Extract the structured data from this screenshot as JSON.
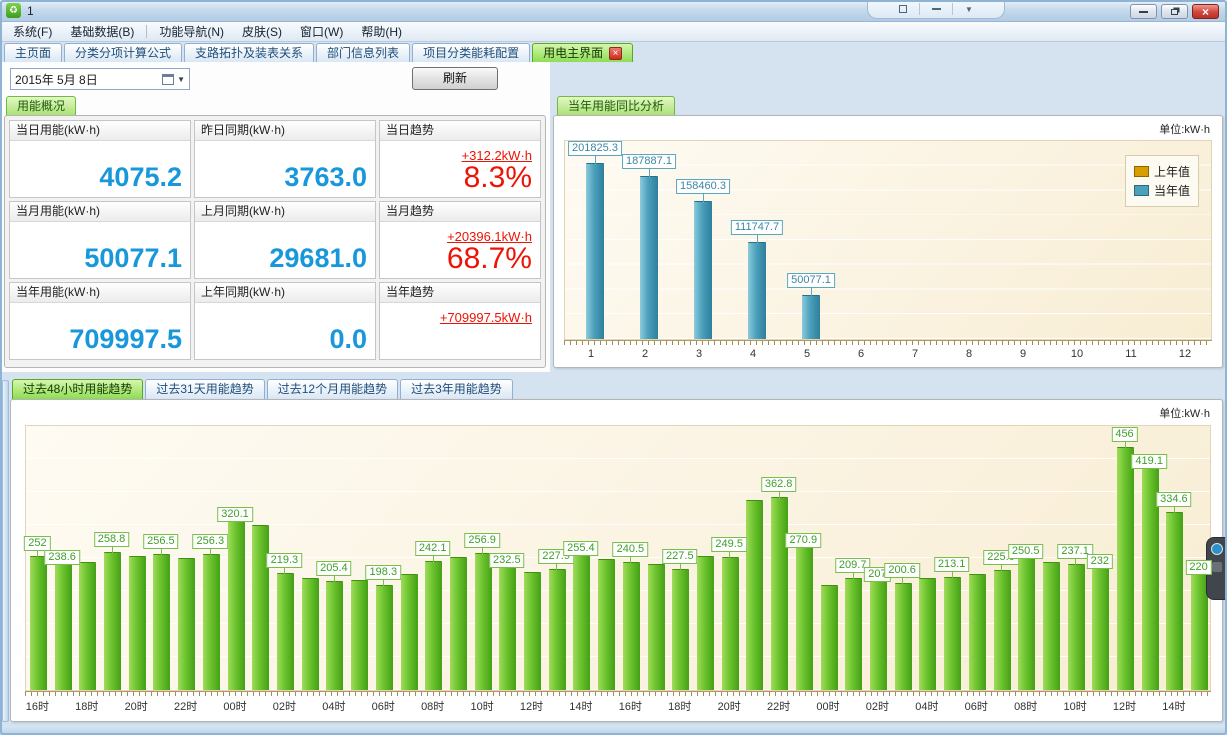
{
  "window": {
    "title": "1",
    "notch_icons": [
      "expand-icon",
      "minimize-icon",
      "chevron-down-icon"
    ],
    "window_buttons": [
      "minimize",
      "restore",
      "close"
    ]
  },
  "menu": {
    "items": [
      "系统(F)",
      "基础数据(B)",
      "功能导航(N)",
      "皮肤(S)",
      "窗口(W)",
      "帮助(H)"
    ],
    "divider_after_index": 1
  },
  "doc_tabs": [
    {
      "label": "主页面",
      "active": false
    },
    {
      "label": "分类分项计算公式",
      "active": false
    },
    {
      "label": "支路拓扑及装表关系",
      "active": false
    },
    {
      "label": "部门信息列表",
      "active": false
    },
    {
      "label": "项目分类能耗配置",
      "active": false
    },
    {
      "label": "用电主界面",
      "active": true,
      "closable": true
    }
  ],
  "toolbar": {
    "date_value": "2015年  5月  8日",
    "refresh_label": "刷新"
  },
  "overview": {
    "panel_title": "用能概况",
    "cards": [
      {
        "title": "当日用能(kW·h)",
        "value": "4075.2"
      },
      {
        "title": "昨日同期(kW·h)",
        "value": "3763.0"
      },
      {
        "title": "当日趋势",
        "delta": "+312.2kW·h",
        "percent": "8.3%"
      },
      {
        "title": "当月用能(kW·h)",
        "value": "50077.1"
      },
      {
        "title": "上月同期(kW·h)",
        "value": "29681.0"
      },
      {
        "title": "当月趋势",
        "delta": "+20396.1kW·h",
        "percent": "68.7%"
      },
      {
        "title": "当年用能(kW·h)",
        "value": "709997.5"
      },
      {
        "title": "上年同期(kW·h)",
        "value": "0.0"
      },
      {
        "title": "当年趋势",
        "delta": "+709997.5kW·h",
        "percent": ""
      }
    ]
  },
  "trend_tabs": [
    {
      "label": "过去48小时用能趋势",
      "active": true
    },
    {
      "label": "过去31天用能趋势",
      "active": false
    },
    {
      "label": "过去12个月用能趋势",
      "active": false
    },
    {
      "label": "过去3年用能趋势",
      "active": false
    }
  ],
  "colors": {
    "value_blue": "#1897db",
    "alert_red": "#ed1305",
    "bar_green": "#5bb622",
    "bar_teal": "#4ba0bc",
    "legend_gold": "#d89e00"
  },
  "chart_data": [
    {
      "type": "bar",
      "title": "当年用能同比分析",
      "unit": "单位:kW·h",
      "categories": [
        "1",
        "2",
        "3",
        "4",
        "5",
        "6",
        "7",
        "8",
        "9",
        "10",
        "11",
        "12"
      ],
      "series": [
        {
          "name": "上年值",
          "color": "#d89e00",
          "values": [
            0,
            0,
            0,
            0,
            0,
            0,
            0,
            0,
            0,
            0,
            0,
            0
          ]
        },
        {
          "name": "当年值",
          "color": "#4ba0bc",
          "values": [
            201825.3,
            187887.1,
            158460.3,
            111747.7,
            50077.1,
            0,
            0,
            0,
            0,
            0,
            0,
            0
          ]
        }
      ],
      "value_labels": [
        "201825.3",
        "187887.1",
        "158460.3",
        "111747.7",
        "50077.1",
        "",
        "",
        "",
        "",
        "",
        "",
        ""
      ],
      "ylim": [
        0,
        230000
      ],
      "legend_position": "top-right",
      "grid": true
    },
    {
      "type": "bar",
      "title": "过去48小时用能趋势",
      "unit": "单位:kW·h",
      "ylim": [
        0,
        500
      ],
      "grid": true,
      "x_tick_labels": [
        "16时",
        "18时",
        "20时",
        "22时",
        "00时",
        "02时",
        "04时",
        "06时",
        "08时",
        "10时",
        "12时",
        "14时",
        "16时",
        "18时",
        "20时",
        "22时",
        "00时",
        "02时",
        "04时",
        "06时",
        "08时",
        "10时",
        "12时",
        "14时"
      ],
      "bars": [
        {
          "v": 252,
          "label": "252"
        },
        {
          "v": 238.6,
          "label": "238.6"
        },
        {
          "v": 241,
          "label": ""
        },
        {
          "v": 258.8,
          "label": "258.8"
        },
        {
          "v": 252,
          "label": ""
        },
        {
          "v": 256.5,
          "label": "256.5"
        },
        {
          "v": 249,
          "label": ""
        },
        {
          "v": 256.3,
          "label": "256.3"
        },
        {
          "v": 320.1,
          "label": "320.1"
        },
        {
          "v": 310,
          "label": ""
        },
        {
          "v": 219.3,
          "label": "219.3"
        },
        {
          "v": 210,
          "label": ""
        },
        {
          "v": 205.4,
          "label": "205.4"
        },
        {
          "v": 207,
          "label": ""
        },
        {
          "v": 198.3,
          "label": "198.3"
        },
        {
          "v": 218,
          "label": ""
        },
        {
          "v": 242.1,
          "label": "242.1"
        },
        {
          "v": 250,
          "label": ""
        },
        {
          "v": 256.9,
          "label": "256.9"
        },
        {
          "v": 232.5,
          "label": "232.5"
        },
        {
          "v": 221,
          "label": ""
        },
        {
          "v": 227.9,
          "label": "227.9"
        },
        {
          "v": 255.4,
          "label": "255.4"
        },
        {
          "v": 247,
          "label": ""
        },
        {
          "v": 240.5,
          "label": "240.5"
        },
        {
          "v": 236,
          "label": ""
        },
        {
          "v": 227.5,
          "label": "227.5"
        },
        {
          "v": 252,
          "label": ""
        },
        {
          "v": 249.5,
          "label": "249.5"
        },
        {
          "v": 357,
          "label": ""
        },
        {
          "v": 362.8,
          "label": "362.8"
        },
        {
          "v": 270.9,
          "label": "270.9"
        },
        {
          "v": 198,
          "label": ""
        },
        {
          "v": 209.7,
          "label": "209.7"
        },
        {
          "v": 207,
          "label": "207"
        },
        {
          "v": 200.6,
          "label": "200.6"
        },
        {
          "v": 211,
          "label": ""
        },
        {
          "v": 213.1,
          "label": "213.1"
        },
        {
          "v": 218,
          "label": ""
        },
        {
          "v": 225.6,
          "label": "225.6"
        },
        {
          "v": 250.5,
          "label": "250.5"
        },
        {
          "v": 240,
          "label": ""
        },
        {
          "v": 237.1,
          "label": "237.1"
        },
        {
          "v": 232,
          "label": "232"
        },
        {
          "v": 456,
          "label": "456"
        },
        {
          "v": 419.1,
          "label": "419.1"
        },
        {
          "v": 334.6,
          "label": "334.6"
        },
        {
          "v": 220,
          "label": "220"
        }
      ]
    }
  ]
}
